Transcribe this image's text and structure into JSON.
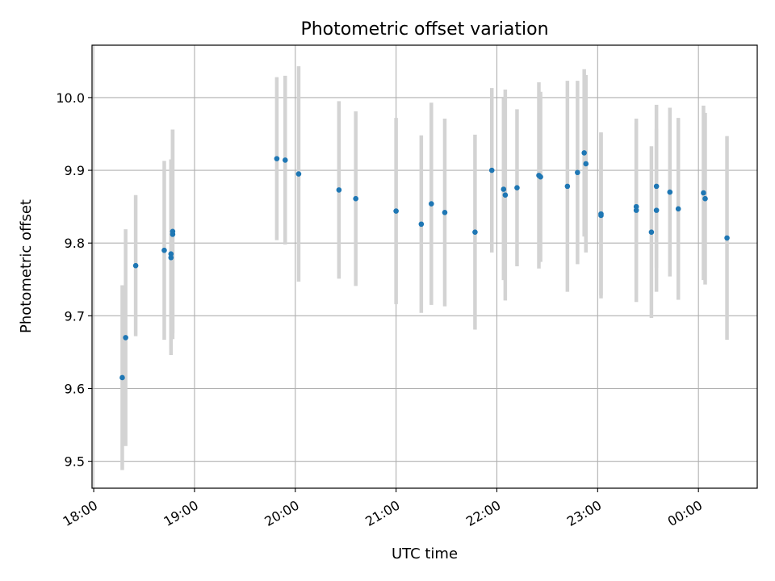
{
  "chart_data": {
    "type": "scatter",
    "title": "Photometric offset variation",
    "xlabel": "UTC time",
    "ylabel": "Photometric offset",
    "x_unit": "UTC hh:mm (wraps past midnight)",
    "xlim": [
      "17:59",
      "00:35"
    ],
    "ylim": [
      9.463,
      10.072
    ],
    "xticks": [
      "18:00",
      "19:00",
      "20:00",
      "21:00",
      "22:00",
      "23:00",
      "00:00"
    ],
    "yticks": [
      9.5,
      9.6,
      9.7,
      9.8,
      9.9,
      10.0
    ],
    "yticklabels": [
      "9.5",
      "9.6",
      "9.7",
      "9.8",
      "9.9",
      "10.0"
    ],
    "grid": true,
    "point_color": "#1f77b4",
    "errorbar_color": "#d3d3d3",
    "points": [
      {
        "x": "18:17",
        "y": 9.615,
        "err": 0.127
      },
      {
        "x": "18:19",
        "y": 9.67,
        "err": 0.149
      },
      {
        "x": "18:25",
        "y": 9.769,
        "err": 0.097
      },
      {
        "x": "18:42",
        "y": 9.79,
        "err": 0.123
      },
      {
        "x": "18:46",
        "y": 9.785,
        "err": 0.13
      },
      {
        "x": "18:46",
        "y": 9.78,
        "err": 0.134
      },
      {
        "x": "18:47",
        "y": 9.812,
        "err": 0.144
      },
      {
        "x": "18:47",
        "y": 9.816,
        "err": 0.14
      },
      {
        "x": "19:49",
        "y": 9.916,
        "err": 0.112
      },
      {
        "x": "19:54",
        "y": 9.914,
        "err": 0.116
      },
      {
        "x": "20:02",
        "y": 9.895,
        "err": 0.148
      },
      {
        "x": "20:26",
        "y": 9.873,
        "err": 0.122
      },
      {
        "x": "20:36",
        "y": 9.861,
        "err": 0.12
      },
      {
        "x": "21:00",
        "y": 9.844,
        "err": 0.128
      },
      {
        "x": "21:15",
        "y": 9.826,
        "err": 0.122
      },
      {
        "x": "21:21",
        "y": 9.854,
        "err": 0.139
      },
      {
        "x": "21:29",
        "y": 9.842,
        "err": 0.129
      },
      {
        "x": "21:47",
        "y": 9.815,
        "err": 0.134
      },
      {
        "x": "21:57",
        "y": 9.9,
        "err": 0.113
      },
      {
        "x": "22:04",
        "y": 9.874,
        "err": 0.125
      },
      {
        "x": "22:05",
        "y": 9.866,
        "err": 0.145
      },
      {
        "x": "22:12",
        "y": 9.876,
        "err": 0.108
      },
      {
        "x": "22:25",
        "y": 9.893,
        "err": 0.128
      },
      {
        "x": "22:26",
        "y": 9.891,
        "err": 0.117
      },
      {
        "x": "22:42",
        "y": 9.878,
        "err": 0.145
      },
      {
        "x": "22:48",
        "y": 9.897,
        "err": 0.126
      },
      {
        "x": "22:52",
        "y": 9.924,
        "err": 0.115
      },
      {
        "x": "22:53",
        "y": 9.909,
        "err": 0.122
      },
      {
        "x": "23:02",
        "y": 9.84,
        "err": 0.112
      },
      {
        "x": "23:02",
        "y": 9.838,
        "err": 0.114
      },
      {
        "x": "23:23",
        "y": 9.85,
        "err": 0.115
      },
      {
        "x": "23:23",
        "y": 9.845,
        "err": 0.126
      },
      {
        "x": "23:32",
        "y": 9.815,
        "err": 0.118
      },
      {
        "x": "23:35",
        "y": 9.878,
        "err": 0.112
      },
      {
        "x": "23:35",
        "y": 9.845,
        "err": 0.112
      },
      {
        "x": "23:43",
        "y": 9.87,
        "err": 0.116
      },
      {
        "x": "23:48",
        "y": 9.847,
        "err": 0.125
      },
      {
        "x": "00:03",
        "y": 9.869,
        "err": 0.12
      },
      {
        "x": "00:04",
        "y": 9.861,
        "err": 0.118
      },
      {
        "x": "00:17",
        "y": 9.807,
        "err": 0.14
      }
    ]
  }
}
